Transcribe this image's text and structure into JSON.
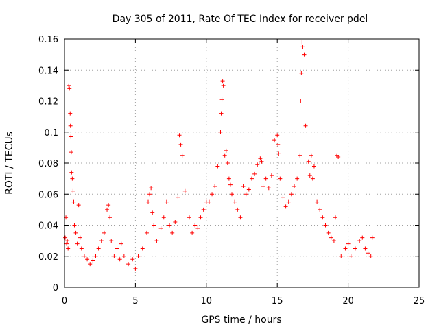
{
  "chart_data": {
    "type": "scatter",
    "title": "Day 305 of 2011, Rate Of TEC Index for receiver pdel",
    "xlabel": "GPS time / hours",
    "ylabel": "ROTI / TECUs",
    "xlim": [
      0,
      25
    ],
    "ylim": [
      0,
      0.16
    ],
    "x_ticks": [
      0,
      5,
      10,
      15,
      20,
      25
    ],
    "x_tick_labels": [
      "0",
      "5",
      "10",
      "15",
      "20",
      "25"
    ],
    "y_ticks": [
      0,
      0.02,
      0.04,
      0.06,
      0.08,
      0.1,
      0.12,
      0.14,
      0.16
    ],
    "y_tick_labels": [
      "0",
      "0.02",
      "0.04",
      "0.06",
      "0.08",
      "0.1",
      "0.12",
      "0.14",
      "0.16"
    ],
    "grid": true,
    "marker": "+",
    "color": "#ff0000",
    "series": [
      {
        "name": "ROTI",
        "x": [
          0.05,
          0.1,
          0.15,
          0.2,
          0.25,
          0.3,
          0.35,
          0.4,
          0.42,
          0.45,
          0.48,
          0.5,
          0.55,
          0.6,
          0.65,
          0.7,
          0.8,
          0.9,
          1.0,
          1.1,
          1.2,
          1.4,
          1.6,
          1.8,
          2.0,
          2.2,
          2.4,
          2.6,
          2.8,
          3.0,
          3.1,
          3.2,
          3.3,
          3.5,
          3.7,
          3.9,
          4.0,
          4.2,
          4.5,
          4.8,
          5.0,
          5.2,
          5.5,
          5.8,
          5.9,
          6.0,
          6.1,
          6.2,
          6.3,
          6.5,
          6.8,
          7.0,
          7.2,
          7.4,
          7.6,
          7.8,
          8.0,
          8.1,
          8.2,
          8.3,
          8.5,
          8.8,
          9.0,
          9.2,
          9.4,
          9.6,
          9.8,
          10.0,
          10.2,
          10.4,
          10.6,
          10.8,
          11.0,
          11.05,
          11.1,
          11.15,
          11.2,
          11.3,
          11.4,
          11.5,
          11.6,
          11.7,
          11.8,
          12.0,
          12.2,
          12.4,
          12.6,
          12.8,
          13.0,
          13.2,
          13.4,
          13.6,
          13.8,
          13.9,
          14.0,
          14.2,
          14.4,
          14.6,
          14.8,
          15.0,
          15.05,
          15.1,
          15.2,
          15.4,
          15.6,
          15.8,
          16.0,
          16.2,
          16.4,
          16.6,
          16.65,
          16.7,
          16.75,
          16.8,
          16.9,
          17.0,
          17.2,
          17.3,
          17.4,
          17.5,
          17.6,
          17.8,
          18.0,
          18.2,
          18.4,
          18.6,
          18.8,
          19.0,
          19.1,
          19.2,
          19.3,
          19.5,
          19.8,
          20.0,
          20.2,
          20.5,
          20.8,
          21.0,
          21.2,
          21.4,
          21.6,
          21.7
        ],
        "y": [
          0.032,
          0.045,
          0.028,
          0.03,
          0.025,
          0.13,
          0.128,
          0.112,
          0.104,
          0.097,
          0.087,
          0.074,
          0.07,
          0.062,
          0.055,
          0.04,
          0.035,
          0.028,
          0.053,
          0.032,
          0.025,
          0.02,
          0.018,
          0.015,
          0.017,
          0.02,
          0.025,
          0.03,
          0.035,
          0.05,
          0.053,
          0.045,
          0.03,
          0.02,
          0.025,
          0.018,
          0.028,
          0.02,
          0.015,
          0.018,
          0.012,
          0.02,
          0.025,
          0.035,
          0.055,
          0.06,
          0.064,
          0.048,
          0.04,
          0.03,
          0.038,
          0.045,
          0.055,
          0.04,
          0.035,
          0.042,
          0.058,
          0.098,
          0.092,
          0.085,
          0.062,
          0.045,
          0.035,
          0.04,
          0.038,
          0.045,
          0.05,
          0.055,
          0.055,
          0.06,
          0.065,
          0.078,
          0.1,
          0.112,
          0.121,
          0.133,
          0.13,
          0.085,
          0.088,
          0.08,
          0.07,
          0.066,
          0.06,
          0.055,
          0.05,
          0.045,
          0.065,
          0.06,
          0.063,
          0.07,
          0.073,
          0.079,
          0.083,
          0.081,
          0.065,
          0.07,
          0.064,
          0.072,
          0.095,
          0.098,
          0.092,
          0.086,
          0.07,
          0.058,
          0.052,
          0.055,
          0.06,
          0.065,
          0.07,
          0.085,
          0.12,
          0.138,
          0.158,
          0.155,
          0.15,
          0.104,
          0.081,
          0.072,
          0.085,
          0.07,
          0.078,
          0.055,
          0.05,
          0.045,
          0.04,
          0.035,
          0.032,
          0.03,
          0.045,
          0.085,
          0.084,
          0.02,
          0.025,
          0.028,
          0.02,
          0.025,
          0.03,
          0.032,
          0.025,
          0.022,
          0.02,
          0.032
        ]
      }
    ]
  }
}
